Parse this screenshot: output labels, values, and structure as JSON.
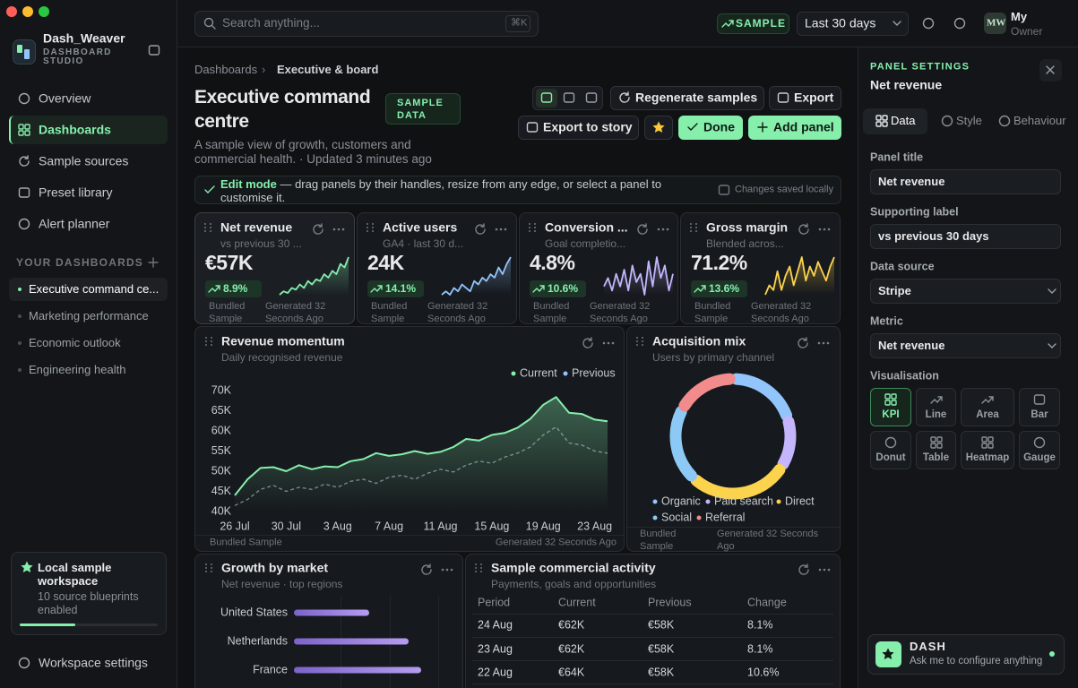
{
  "sidebar": {
    "brand": {
      "name": "Dash_Weaver",
      "subtitle": "DASHBOARD STUDIO"
    },
    "nav": [
      {
        "label": "Overview"
      },
      {
        "label": "Dashboards",
        "active": true
      },
      {
        "label": "Sample sources"
      },
      {
        "label": "Preset library"
      },
      {
        "label": "Alert planner"
      }
    ],
    "section_title": "YOUR DASHBOARDS",
    "dashboards": [
      {
        "label": "Executive command ce...",
        "active": true
      },
      {
        "label": "Marketing performance"
      },
      {
        "label": "Economic outlook"
      },
      {
        "label": "Engineering health"
      }
    ],
    "workspace": {
      "title": "Local sample workspace",
      "description": "10 source blueprints enabled"
    },
    "settings": "Workspace settings"
  },
  "topbar": {
    "search": "Search anything...",
    "shortcut": "⌘K",
    "badge": "SAMPLE",
    "range": "Last 30 days",
    "avatar": "MW",
    "user": "My",
    "role": "Owner"
  },
  "header": {
    "breadcrumb": [
      "Dashboards",
      "Executive & board"
    ],
    "title": "Executive command centre",
    "badge": "SAMPLE DATA",
    "subtitle": "A sample view of growth, customers and commercial health. · Updated 3 minutes ago",
    "actions": [
      "Regenerate samples",
      "Export",
      "Export to story",
      "Done",
      "Add panel"
    ]
  },
  "edit_banner": {
    "label": "Edit mode",
    "text": " — drag panels by their handles, resize from any edge, or select a panel to customise it.",
    "status": "Changes saved locally"
  },
  "kpis": [
    {
      "title": "Net revenue",
      "subtitle": "vs previous 30 ...",
      "value": "€57K",
      "delta": "8.9%",
      "source": "Bundled Sample",
      "updated": "Generated 32 Seconds Ago",
      "color": "#86efac",
      "trend": [
        3,
        4,
        3.5,
        5,
        4.5,
        6,
        5,
        7,
        6,
        7.5,
        7,
        9,
        8,
        10,
        9,
        12,
        11,
        14
      ]
    },
    {
      "title": "Active users",
      "subtitle": "GA4 · last 30 d...",
      "value": "24K",
      "delta": "14.1%",
      "source": "Bundled Sample",
      "updated": "Generated 32 Seconds Ago",
      "color": "#93c5fd",
      "trend": [
        3,
        4,
        3,
        5,
        4,
        6,
        5,
        4,
        7,
        6,
        8,
        7,
        9,
        8,
        11,
        9,
        12,
        14
      ]
    },
    {
      "title": "Conversion ...",
      "subtitle": "Goal completio...",
      "value": "4.8%",
      "delta": "10.6%",
      "source": "Bundled Sample",
      "updated": "Generated 32 Seconds Ago",
      "color": "#c4b5fd",
      "trend": [
        6,
        8,
        5,
        9,
        6,
        10,
        5,
        11,
        7,
        9,
        4,
        12,
        6,
        13,
        8,
        11,
        5,
        9
      ]
    },
    {
      "title": "Gross margin",
      "subtitle": "Blended acros...",
      "value": "71.2%",
      "delta": "13.6%",
      "source": "Bundled Sample",
      "updated": "Generated 32 Seconds Ago",
      "color": "#fcd34d",
      "trend": [
        4,
        6,
        5,
        9,
        5,
        8,
        10,
        6,
        9,
        12,
        7,
        10,
        8,
        11,
        9,
        7,
        10,
        12
      ]
    }
  ],
  "revenue_chart": {
    "type": "line",
    "title": "Revenue momentum",
    "subtitle": "Daily recognised revenue",
    "categories": [
      "26 Jul",
      null,
      null,
      null,
      "30 Jul",
      null,
      null,
      null,
      "3 Aug",
      null,
      null,
      null,
      "7 Aug",
      null,
      null,
      null,
      "11 Aug",
      null,
      null,
      null,
      "15 Aug",
      null,
      null,
      null,
      "19 Aug",
      null,
      null,
      null,
      "23 Aug",
      null
    ],
    "series": [
      {
        "name": "Current",
        "color": "#86efac",
        "values": [
          44000,
          48000,
          50800,
          51000,
          50000,
          51500,
          50500,
          51200,
          51000,
          52500,
          53000,
          54500,
          53800,
          54200,
          55000,
          54300,
          54800,
          56000,
          58000,
          57600,
          59000,
          59500,
          60800,
          63000,
          66500,
          68400,
          64500,
          64200,
          62800,
          62400
        ]
      },
      {
        "name": "Previous",
        "color": "#7b8390",
        "dashed": true,
        "values": [
          41500,
          43000,
          45500,
          46500,
          45000,
          46000,
          45500,
          46800,
          46000,
          47500,
          48000,
          47000,
          48500,
          49000,
          48000,
          49500,
          50500,
          49800,
          51500,
          52500,
          52000,
          53500,
          54500,
          56000,
          59000,
          61000,
          57000,
          56500,
          55000,
          54500
        ]
      }
    ],
    "ylim": [
      40000,
      70000
    ],
    "yticks": [
      {
        "value": 40000,
        "label": "40K"
      },
      {
        "value": 45000,
        "label": "45K"
      },
      {
        "value": 50000,
        "label": "50K"
      },
      {
        "value": 55000,
        "label": "55K"
      },
      {
        "value": 60000,
        "label": "60K"
      },
      {
        "value": 65000,
        "label": "65K"
      },
      {
        "value": 70000,
        "label": "70K"
      }
    ],
    "source": "Bundled Sample",
    "updated": "Generated 32 Seconds Ago"
  },
  "mix_chart": {
    "type": "donut",
    "title": "Acquisition mix",
    "subtitle": "Users by primary channel",
    "categories": [
      "Organic",
      "Paid search",
      "Direct",
      "Social",
      "Referral"
    ],
    "values": [
      20,
      14,
      28,
      21,
      17
    ],
    "colors": [
      "#93c5fd",
      "#c4b5fd",
      "#fcd34d",
      "#8ccaf5",
      "#f28b8b"
    ],
    "source": "Bundled Sample",
    "updated": "Generated 32 Seconds Ago"
  },
  "market_chart": {
    "type": "bar",
    "orientation": "horizontal",
    "title": "Growth by market",
    "subtitle": "Net revenue · top regions",
    "categories": [
      "United States",
      "Netherlands",
      "France"
    ],
    "values": [
      42,
      64,
      71
    ],
    "color": "#b69cf0"
  },
  "activity": {
    "title": "Sample commercial activity",
    "subtitle": "Payments, goals and opportunities",
    "columns": [
      "Period",
      "Current",
      "Previous",
      "Change"
    ],
    "rows": [
      [
        "24 Aug",
        "€62K",
        "€58K",
        "8.1%"
      ],
      [
        "23 Aug",
        "€62K",
        "€58K",
        "8.1%"
      ],
      [
        "22 Aug",
        "€64K",
        "€58K",
        "10.6%"
      ]
    ]
  },
  "panel": {
    "eyebrow": "PANEL SETTINGS",
    "title": "Net revenue",
    "tabs": [
      {
        "label": "Data",
        "active": true
      },
      {
        "label": "Style"
      },
      {
        "label": "Behaviour"
      }
    ],
    "fields": [
      {
        "label": "Panel title",
        "value": "Net revenue"
      },
      {
        "label": "Supporting label",
        "value": "vs previous 30 days"
      },
      {
        "label": "Data source",
        "value": "Stripe",
        "select": true
      },
      {
        "label": "Metric",
        "value": "Net revenue",
        "select": true
      }
    ],
    "visualisation": {
      "label": "Visualisation",
      "options": [
        {
          "label": "KPI",
          "active": true
        },
        {
          "label": "Line"
        },
        {
          "label": "Area"
        },
        {
          "label": "Bar"
        },
        {
          "label": "Donut"
        },
        {
          "label": "Table"
        },
        {
          "label": "Heatmap"
        },
        {
          "label": "Gauge"
        }
      ]
    }
  },
  "assistant": {
    "name": "DASH",
    "hint": "Ask me to configure anything"
  }
}
